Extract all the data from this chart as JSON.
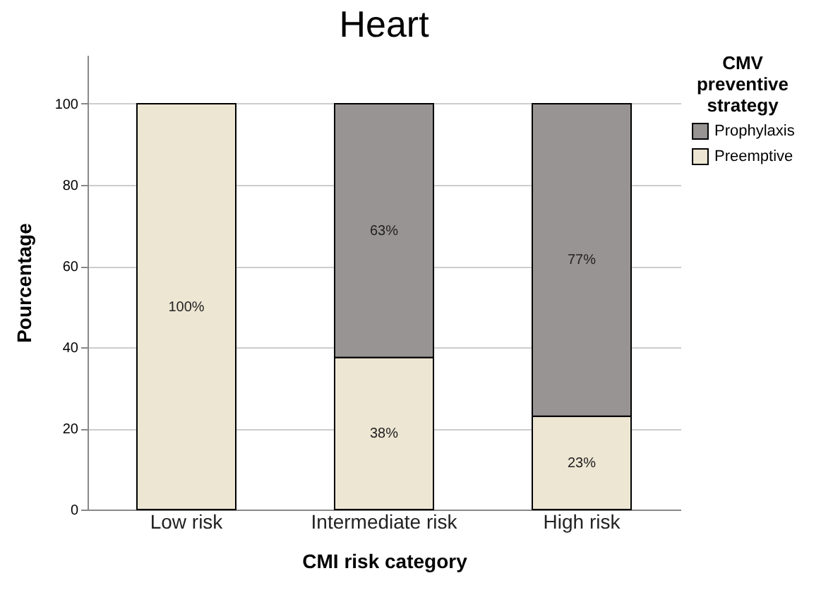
{
  "chart_data": {
    "type": "bar",
    "title": "Heart",
    "xlabel": "CMI risk category",
    "ylabel": "Pourcentage",
    "legend_title": "CMV preventive strategy",
    "categories": [
      "Low risk",
      "Intermediate risk",
      "High risk"
    ],
    "stacked": true,
    "series": [
      {
        "name": "Preemptive",
        "color": "#ede6d3",
        "values": [
          100,
          37.5,
          23
        ],
        "value_labels": [
          "100%",
          "38%",
          "23%"
        ]
      },
      {
        "name": "Prophylaxis",
        "color": "#999494",
        "values": [
          null,
          62.5,
          77
        ],
        "value_labels": [
          null,
          "63%",
          "77%"
        ]
      }
    ],
    "ylim": [
      0,
      112
    ],
    "yticks": [
      0,
      20,
      40,
      60,
      80,
      100
    ],
    "grid": "y",
    "legend": "top right"
  }
}
